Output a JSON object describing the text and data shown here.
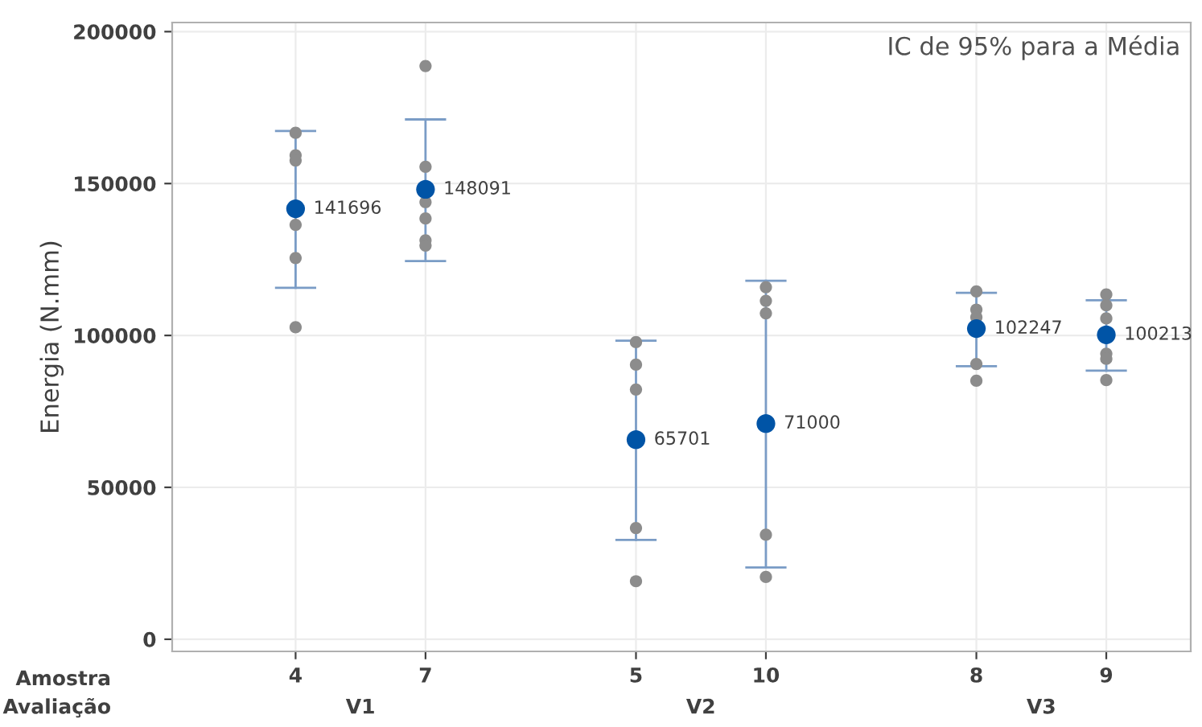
{
  "chart_data": {
    "type": "scatter",
    "ylabel": "Energia (N.mm)",
    "categories": [
      "4",
      "7",
      "5",
      "10",
      "8",
      "9"
    ],
    "ylim": [
      -4000,
      203000
    ],
    "yticks": [
      0,
      50000,
      100000,
      150000,
      200000
    ],
    "grid": true,
    "marker": "circle",
    "annotations": [
      "Amostra",
      "Avaliação",
      "V1",
      "V2",
      "V3",
      "IC de 95% para a Média"
    ],
    "series": [
      {
        "color": "#8c8c8c",
        "x": [
          "4",
          "4",
          "4",
          "4",
          "4",
          "4",
          "7",
          "7",
          "7",
          "7",
          "7",
          "7",
          "5",
          "5",
          "5",
          "5",
          "5",
          "10",
          "10",
          "10",
          "10",
          "10",
          "8",
          "8",
          "8",
          "8",
          "8",
          "9",
          "9",
          "9",
          "9",
          "9",
          "9"
        ],
        "values": [
          166700,
          159300,
          157600,
          136400,
          125500,
          102700,
          188700,
          155500,
          143900,
          138500,
          131300,
          129600,
          97800,
          90400,
          82200,
          36600,
          19100,
          115900,
          111400,
          107300,
          34400,
          20500,
          114500,
          108500,
          106000,
          90600,
          85100,
          113500,
          109900,
          105600,
          94000,
          92300,
          85300
        ]
      },
      {
        "color": "#0054a6",
        "values": [
          141696,
          148091,
          65701,
          71000,
          102247,
          100213
        ],
        "data_labels": true,
        "errors": [
          [
            115700,
            167300
          ],
          [
            124500,
            171100
          ],
          [
            32700,
            98300
          ],
          [
            23600,
            118000
          ],
          [
            89900,
            114000
          ],
          [
            88400,
            111600
          ]
        ]
      }
    ]
  }
}
